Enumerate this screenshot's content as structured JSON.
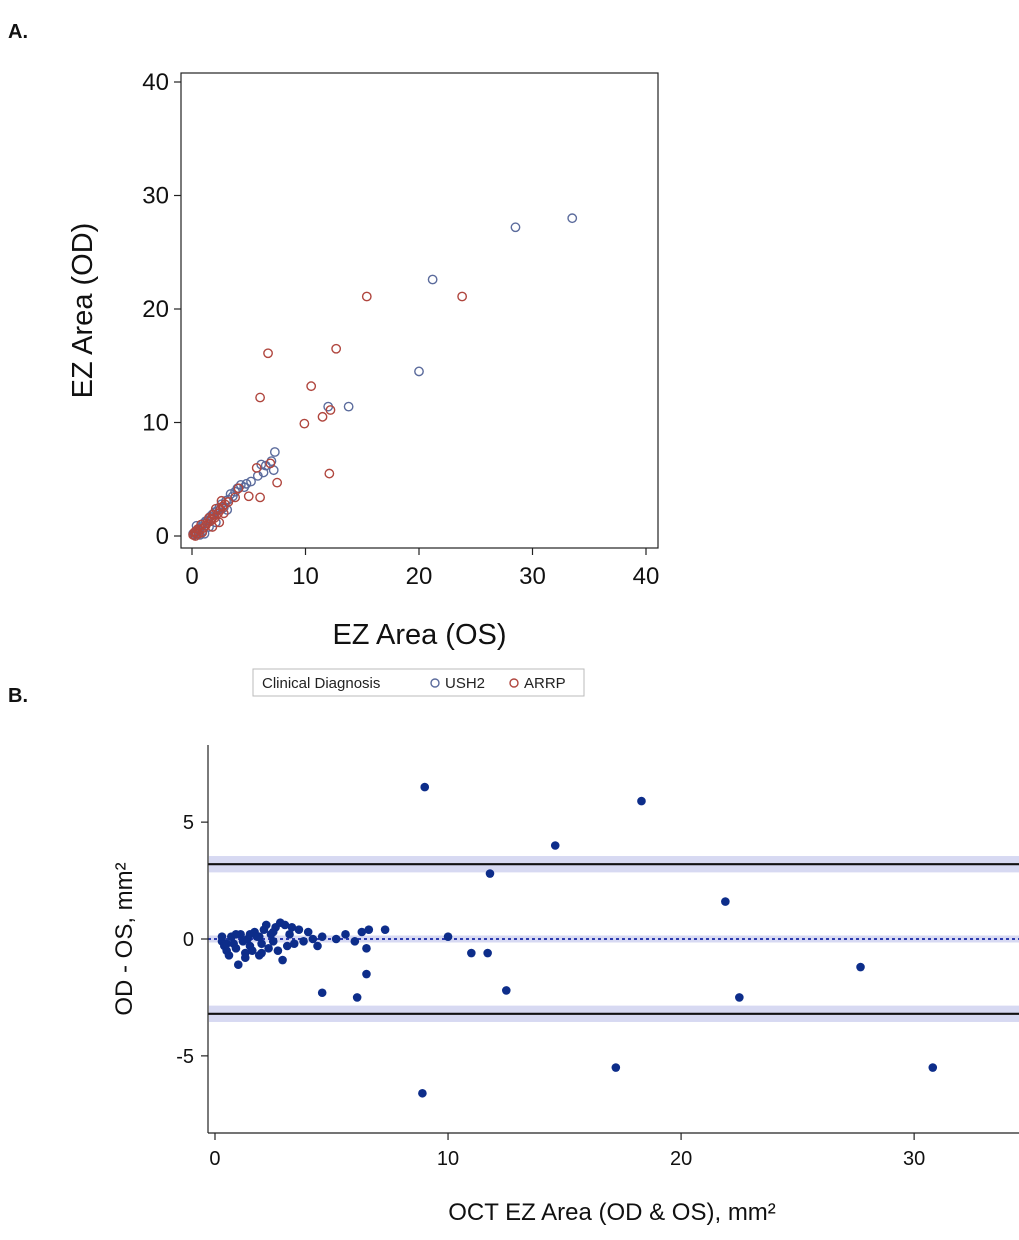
{
  "panels": {
    "a_label": "A.",
    "b_label": "B."
  },
  "colors": {
    "ush2": "#5b6b9c",
    "arrp": "#b0463e",
    "bland_altman_point": "#0d2d8a",
    "band": "#d7d9f2",
    "limit_line": "#111111",
    "mean_line": "#2d3cb0"
  },
  "chart_data": [
    {
      "panel": "A.",
      "type": "scatter",
      "xlabel": "EZ Area (OS)",
      "ylabel": "EZ Area (OD)",
      "xlim": [
        0,
        40
      ],
      "ylim": [
        0,
        40
      ],
      "x_ticks": [
        0,
        10,
        20,
        30,
        40
      ],
      "y_ticks": [
        0,
        10,
        20,
        30,
        40
      ],
      "grid": false,
      "legend": {
        "position": "bottom",
        "title": "Clinical Diagnosis",
        "entries": [
          "USH2",
          "ARRP"
        ]
      },
      "series": [
        {
          "name": "USH2",
          "marker": "open-circle",
          "points": [
            [
              33.5,
              28.0
            ],
            [
              28.5,
              27.2
            ],
            [
              21.2,
              22.6
            ],
            [
              20.0,
              14.5
            ],
            [
              13.8,
              11.4
            ],
            [
              12.0,
              11.4
            ],
            [
              7.3,
              7.4
            ],
            [
              7.0,
              6.6
            ],
            [
              7.2,
              5.8
            ],
            [
              6.5,
              6.2
            ],
            [
              6.3,
              5.6
            ],
            [
              6.1,
              6.3
            ],
            [
              5.8,
              5.3
            ],
            [
              5.2,
              4.8
            ],
            [
              4.8,
              4.6
            ],
            [
              4.6,
              4.3
            ],
            [
              4.3,
              4.5
            ],
            [
              4.0,
              4.2
            ],
            [
              3.8,
              3.9
            ],
            [
              3.6,
              3.5
            ],
            [
              3.4,
              3.7
            ],
            [
              3.2,
              3.2
            ],
            [
              3.0,
              3.1
            ],
            [
              2.8,
              2.5
            ],
            [
              3.1,
              2.3
            ],
            [
              2.6,
              2.8
            ],
            [
              2.4,
              2.5
            ],
            [
              2.2,
              2.2
            ],
            [
              2.0,
              2.1
            ],
            [
              1.8,
              1.9
            ],
            [
              1.6,
              1.7
            ],
            [
              1.4,
              1.4
            ],
            [
              1.2,
              1.3
            ],
            [
              1.0,
              1.1
            ],
            [
              0.8,
              0.8
            ],
            [
              0.6,
              0.6
            ],
            [
              0.5,
              0.4
            ],
            [
              0.3,
              0.3
            ],
            [
              0.2,
              0.1
            ],
            [
              0.1,
              0.2
            ],
            [
              0.9,
              0.4
            ],
            [
              1.1,
              0.2
            ],
            [
              0.4,
              0.9
            ],
            [
              1.5,
              0.8
            ],
            [
              2.1,
              1.2
            ],
            [
              0.7,
              0.1
            ]
          ]
        },
        {
          "name": "ARRP",
          "marker": "open-circle",
          "points": [
            [
              23.8,
              21.1
            ],
            [
              15.4,
              21.1
            ],
            [
              12.7,
              16.5
            ],
            [
              6.7,
              16.1
            ],
            [
              10.5,
              13.2
            ],
            [
              6.0,
              12.2
            ],
            [
              11.5,
              10.5
            ],
            [
              12.2,
              11.1
            ],
            [
              9.9,
              9.9
            ],
            [
              12.1,
              5.5
            ],
            [
              7.5,
              4.7
            ],
            [
              6.9,
              6.4
            ],
            [
              5.7,
              6.0
            ],
            [
              6.0,
              3.4
            ],
            [
              5.0,
              3.5
            ],
            [
              4.1,
              4.2
            ],
            [
              3.8,
              3.4
            ],
            [
              3.2,
              3.0
            ],
            [
              2.9,
              2.8
            ],
            [
              2.7,
              2.6
            ],
            [
              2.5,
              2.3
            ],
            [
              2.3,
              2.0
            ],
            [
              2.1,
              2.4
            ],
            [
              2.0,
              1.6
            ],
            [
              1.9,
              1.9
            ],
            [
              1.7,
              1.5
            ],
            [
              1.5,
              1.6
            ],
            [
              1.3,
              1.1
            ],
            [
              1.2,
              0.9
            ],
            [
              1.0,
              0.7
            ],
            [
              0.8,
              1.0
            ],
            [
              0.7,
              0.5
            ],
            [
              0.5,
              0.6
            ],
            [
              0.4,
              0.2
            ],
            [
              0.3,
              0.4
            ],
            [
              0.2,
              0.3
            ],
            [
              0.1,
              0.1
            ],
            [
              0.6,
              0.2
            ],
            [
              0.9,
              0.3
            ],
            [
              1.8,
              0.8
            ],
            [
              2.4,
              1.2
            ],
            [
              2.8,
              2.0
            ],
            [
              1.6,
              1.3
            ],
            [
              2.6,
              3.1
            ],
            [
              0.3,
              0.0
            ]
          ]
        }
      ]
    },
    {
      "panel": "B.",
      "type": "scatter",
      "xlabel": "OCT EZ Area (OD & OS),  mm²",
      "ylabel": "OD - OS, mm²",
      "xlim": [
        -0.3,
        34.5
      ],
      "ylim": [
        -8.3,
        8.3
      ],
      "x_ticks": [
        0,
        10,
        20,
        30
      ],
      "y_ticks": [
        5,
        0,
        -5
      ],
      "grid": false,
      "mean_difference": 0,
      "limits_of_agreement": [
        3.2,
        -3.2
      ],
      "confidence_bands": [
        [
          2.85,
          3.55
        ],
        [
          -0.15,
          0.15
        ],
        [
          -3.55,
          -2.85
        ]
      ],
      "series": [
        {
          "marker": "filled-circle",
          "points": [
            [
              9.0,
              6.5
            ],
            [
              18.3,
              5.9
            ],
            [
              14.6,
              4.0
            ],
            [
              11.8,
              2.8
            ],
            [
              21.9,
              1.6
            ],
            [
              11.0,
              -0.6
            ],
            [
              11.7,
              -0.6
            ],
            [
              27.7,
              -1.2
            ],
            [
              12.5,
              -2.2
            ],
            [
              22.5,
              -2.5
            ],
            [
              4.6,
              -2.3
            ],
            [
              6.1,
              -2.5
            ],
            [
              6.5,
              -1.5
            ],
            [
              17.2,
              -5.5
            ],
            [
              8.9,
              -6.6
            ],
            [
              30.8,
              -5.5
            ],
            [
              0.3,
              -0.1
            ],
            [
              0.4,
              -0.3
            ],
            [
              0.5,
              -0.5
            ],
            [
              0.6,
              -0.7
            ],
            [
              0.7,
              0.1
            ],
            [
              0.8,
              -0.2
            ],
            [
              0.9,
              -0.4
            ],
            [
              1.0,
              -1.1
            ],
            [
              1.1,
              0.2
            ],
            [
              1.2,
              -0.1
            ],
            [
              1.3,
              -0.6
            ],
            [
              1.4,
              0.0
            ],
            [
              1.5,
              -0.3
            ],
            [
              1.6,
              -0.5
            ],
            [
              1.7,
              0.3
            ],
            [
              1.8,
              0.1
            ],
            [
              1.9,
              -0.7
            ],
            [
              2.0,
              -0.2
            ],
            [
              2.1,
              0.4
            ],
            [
              2.2,
              0.6
            ],
            [
              2.3,
              -0.4
            ],
            [
              2.4,
              0.2
            ],
            [
              2.5,
              -0.1
            ],
            [
              2.6,
              0.5
            ],
            [
              2.7,
              -0.5
            ],
            [
              2.8,
              0.7
            ],
            [
              2.9,
              -0.9
            ],
            [
              3.0,
              0.6
            ],
            [
              3.2,
              0.2
            ],
            [
              3.4,
              -0.2
            ],
            [
              3.6,
              0.4
            ],
            [
              3.8,
              -0.1
            ],
            [
              4.0,
              0.3
            ],
            [
              4.2,
              0.0
            ],
            [
              4.4,
              -0.3
            ],
            [
              4.6,
              0.1
            ],
            [
              5.2,
              0.0
            ],
            [
              5.6,
              0.2
            ],
            [
              6.0,
              -0.1
            ],
            [
              6.3,
              0.3
            ],
            [
              6.5,
              -0.4
            ],
            [
              6.6,
              0.4
            ],
            [
              7.3,
              0.4
            ],
            [
              1.3,
              -0.8
            ],
            [
              1.9,
              0.1
            ],
            [
              0.5,
              -0.2
            ],
            [
              0.9,
              0.2
            ],
            [
              2.5,
              0.3
            ],
            [
              3.1,
              -0.3
            ],
            [
              3.3,
              0.5
            ],
            [
              1.5,
              0.2
            ],
            [
              2.0,
              -0.6
            ],
            [
              0.3,
              0.1
            ],
            [
              10.0,
              0.1
            ]
          ]
        }
      ]
    }
  ]
}
